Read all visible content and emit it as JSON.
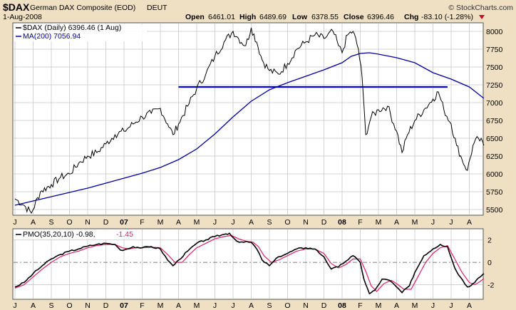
{
  "header": {
    "symbol": "$DAX",
    "name": "German DAX Composite (EOD)",
    "exchange": "DEUT",
    "date": "1-Aug-2008",
    "brand": "© StockCharts.com",
    "open_label": "Open",
    "open": "6461.01",
    "high_label": "High",
    "high": "6489.69",
    "low_label": "Low",
    "low": "6378.55",
    "close_label": "Close",
    "close": "6396.46",
    "chg_label": "Chg",
    "chg": "-83.10 (-1.28%)"
  },
  "colors": {
    "price": "#000000",
    "ma": "#0000a0",
    "support": "#0000e0",
    "pmo": "#000000",
    "signal": "#e0206a",
    "panel_bg": "#ffffff",
    "frame_bg": "#efe0c4",
    "grid": "#c8c8c8"
  },
  "chart_data": [
    {
      "type": "line",
      "legend": [
        {
          "label": "$DAX (Daily) 6396.46 (1 Aug)",
          "value_color": "#000000"
        },
        {
          "label": "MA(200) 7056.94",
          "value_color": "#0000a0"
        }
      ],
      "x_ticks": [
        "J",
        "A",
        "S",
        "O",
        "N",
        "D",
        "07",
        "F",
        "M",
        "A",
        "M",
        "J",
        "J",
        "A",
        "S",
        "O",
        "N",
        "D",
        "08",
        "F",
        "M",
        "A",
        "M",
        "J",
        "J",
        "A"
      ],
      "y_ticks": [
        5500,
        5750,
        6000,
        6250,
        6500,
        6750,
        7000,
        7250,
        7500,
        7750,
        8000
      ],
      "ylim": [
        5420,
        8120
      ],
      "series": [
        {
          "name": "$DAX (Daily)",
          "points": [
            [
              0,
              5650
            ],
            [
              0.5,
              5560
            ],
            [
              0.9,
              5450
            ],
            [
              1.4,
              5750
            ],
            [
              2,
              5850
            ],
            [
              2.5,
              5950
            ],
            [
              3,
              6000
            ],
            [
              3.5,
              6150
            ],
            [
              4,
              6250
            ],
            [
              4.5,
              6300
            ],
            [
              5,
              6420
            ],
            [
              5.5,
              6550
            ],
            [
              6,
              6600
            ],
            [
              6.5,
              6700
            ],
            [
              7,
              6800
            ],
            [
              7.5,
              6850
            ],
            [
              8,
              6920
            ],
            [
              8.4,
              6700
            ],
            [
              8.7,
              6550
            ],
            [
              9,
              6700
            ],
            [
              9.5,
              6950
            ],
            [
              10,
              7200
            ],
            [
              10.5,
              7400
            ],
            [
              11,
              7650
            ],
            [
              11.5,
              7850
            ],
            [
              12,
              8000
            ],
            [
              12.3,
              7900
            ],
            [
              12.7,
              7800
            ],
            [
              13,
              8050
            ],
            [
              13.3,
              7850
            ],
            [
              13.6,
              7600
            ],
            [
              14,
              7450
            ],
            [
              14.5,
              7400
            ],
            [
              15,
              7550
            ],
            [
              15.5,
              7750
            ],
            [
              16,
              7850
            ],
            [
              16.5,
              7950
            ],
            [
              17,
              7900
            ],
            [
              17.5,
              8000
            ],
            [
              17.8,
              7800
            ],
            [
              18,
              7700
            ],
            [
              18.3,
              7950
            ],
            [
              18.6,
              8000
            ],
            [
              18.9,
              7750
            ],
            [
              19.1,
              7350
            ],
            [
              19.3,
              6550
            ],
            [
              19.6,
              6800
            ],
            [
              20,
              6900
            ],
            [
              20.5,
              6950
            ],
            [
              21,
              6600
            ],
            [
              21.3,
              6300
            ],
            [
              21.6,
              6550
            ],
            [
              22,
              6750
            ],
            [
              22.5,
              6900
            ],
            [
              23,
              7050
            ],
            [
              23.3,
              7150
            ],
            [
              23.6,
              6900
            ],
            [
              24,
              6700
            ],
            [
              24.3,
              6400
            ],
            [
              24.6,
              6200
            ],
            [
              24.9,
              6050
            ],
            [
              25.2,
              6400
            ],
            [
              25.5,
              6500
            ],
            [
              25.8,
              6400
            ]
          ]
        },
        {
          "name": "MA(200)",
          "points": [
            [
              0,
              5560
            ],
            [
              1,
              5620
            ],
            [
              2,
              5680
            ],
            [
              3,
              5740
            ],
            [
              4,
              5800
            ],
            [
              5,
              5870
            ],
            [
              6,
              5940
            ],
            [
              7,
              6010
            ],
            [
              8,
              6090
            ],
            [
              9,
              6200
            ],
            [
              10,
              6350
            ],
            [
              11,
              6560
            ],
            [
              12,
              6800
            ],
            [
              13,
              7020
            ],
            [
              14,
              7180
            ],
            [
              15,
              7280
            ],
            [
              16,
              7370
            ],
            [
              17,
              7460
            ],
            [
              18,
              7560
            ],
            [
              18.5,
              7650
            ],
            [
              19,
              7690
            ],
            [
              19.5,
              7700
            ],
            [
              20,
              7680
            ],
            [
              21,
              7630
            ],
            [
              22,
              7560
            ],
            [
              23,
              7420
            ],
            [
              24,
              7330
            ],
            [
              25,
              7220
            ],
            [
              25.8,
              7060
            ]
          ]
        }
      ],
      "annotation": {
        "kind": "horizontal-line",
        "y": 7220,
        "x_from": 9.0,
        "x_to": 23.8
      }
    },
    {
      "type": "line",
      "legend": [
        {
          "label": "PMO(35,20,10) -0.98,",
          "value_color": "#000000"
        },
        {
          "label": "-1.45",
          "value_color": "#e0206a"
        }
      ],
      "y_ticks": [
        -2,
        0,
        2
      ],
      "ylim": [
        -3.3,
        3.0
      ],
      "series": [
        {
          "name": "PMO",
          "points": [
            [
              0,
              -2.2
            ],
            [
              0.5,
              -1.8
            ],
            [
              1,
              -1
            ],
            [
              1.5,
              -0.3
            ],
            [
              2,
              0.3
            ],
            [
              2.5,
              0.7
            ],
            [
              3,
              1
            ],
            [
              3.5,
              1.2
            ],
            [
              4,
              1.45
            ],
            [
              4.5,
              1.6
            ],
            [
              5,
              1.7
            ],
            [
              5.5,
              1.6
            ],
            [
              5.8,
              1.1
            ],
            [
              6.2,
              1.2
            ],
            [
              6.5,
              1.4
            ],
            [
              7,
              1.3
            ],
            [
              7.5,
              1.4
            ],
            [
              8,
              1.2
            ],
            [
              8.4,
              0.2
            ],
            [
              8.7,
              -0.3
            ],
            [
              9,
              0.2
            ],
            [
              9.5,
              1
            ],
            [
              10,
              1.7
            ],
            [
              10.5,
              2.0
            ],
            [
              11,
              2.3
            ],
            [
              11.5,
              2.5
            ],
            [
              11.8,
              2.6
            ],
            [
              12.2,
              1.9
            ],
            [
              12.6,
              1.8
            ],
            [
              13,
              1.8
            ],
            [
              13.3,
              1.2
            ],
            [
              13.6,
              0.2
            ],
            [
              14,
              -0.3
            ],
            [
              14.5,
              0.5
            ],
            [
              15,
              0.8
            ],
            [
              15.5,
              1.2
            ],
            [
              16,
              1.3
            ],
            [
              16.5,
              1.2
            ],
            [
              17,
              0.5
            ],
            [
              17.4,
              -0.6
            ],
            [
              17.8,
              -0.4
            ],
            [
              18.2,
              0.1
            ],
            [
              18.6,
              0.6
            ],
            [
              19,
              0
            ],
            [
              19.2,
              -1.5
            ],
            [
              19.5,
              -2.8
            ],
            [
              19.8,
              -2.5
            ],
            [
              20.2,
              -1.5
            ],
            [
              20.6,
              -1.6
            ],
            [
              21,
              -2.2
            ],
            [
              21.3,
              -2.7
            ],
            [
              21.7,
              -2.1
            ],
            [
              22,
              -0.9
            ],
            [
              22.5,
              0.6
            ],
            [
              23,
              1.2
            ],
            [
              23.4,
              1.6
            ],
            [
              23.8,
              1.4
            ],
            [
              24.2,
              -0.5
            ],
            [
              24.5,
              -1.3
            ],
            [
              24.9,
              -2.2
            ],
            [
              25.2,
              -1.9
            ],
            [
              25.5,
              -1.4
            ],
            [
              25.8,
              -1.0
            ]
          ]
        },
        {
          "name": "Signal",
          "points": [
            [
              0,
              -2.3
            ],
            [
              0.5,
              -2
            ],
            [
              1,
              -1.3
            ],
            [
              1.5,
              -0.6
            ],
            [
              2,
              0
            ],
            [
              2.5,
              0.5
            ],
            [
              3,
              0.8
            ],
            [
              3.5,
              1
            ],
            [
              4,
              1.3
            ],
            [
              4.5,
              1.5
            ],
            [
              5,
              1.6
            ],
            [
              5.5,
              1.6
            ],
            [
              5.9,
              1.3
            ],
            [
              6.3,
              1.2
            ],
            [
              6.6,
              1.3
            ],
            [
              7,
              1.3
            ],
            [
              7.5,
              1.35
            ],
            [
              8,
              1.3
            ],
            [
              8.4,
              0.7
            ],
            [
              8.8,
              0
            ],
            [
              9.2,
              0
            ],
            [
              9.6,
              0.7
            ],
            [
              10,
              1.3
            ],
            [
              10.5,
              1.7
            ],
            [
              11,
              2.1
            ],
            [
              11.5,
              2.3
            ],
            [
              11.9,
              2.4
            ],
            [
              12.3,
              2.1
            ],
            [
              12.7,
              1.9
            ],
            [
              13.1,
              1.8
            ],
            [
              13.4,
              1.4
            ],
            [
              13.7,
              0.6
            ],
            [
              14.1,
              0
            ],
            [
              14.5,
              0.2
            ],
            [
              15,
              0.6
            ],
            [
              15.5,
              1
            ],
            [
              16,
              1.2
            ],
            [
              16.5,
              1.2
            ],
            [
              17,
              0.8
            ],
            [
              17.4,
              -0.1
            ],
            [
              17.8,
              -0.5
            ],
            [
              18.2,
              -0.2
            ],
            [
              18.6,
              0.3
            ],
            [
              19,
              0.3
            ],
            [
              19.3,
              -0.8
            ],
            [
              19.6,
              -2.1
            ],
            [
              19.9,
              -2.6
            ],
            [
              20.3,
              -1.9
            ],
            [
              20.7,
              -1.6
            ],
            [
              21,
              -1.9
            ],
            [
              21.4,
              -2.4
            ],
            [
              21.8,
              -2.4
            ],
            [
              22.1,
              -1.5
            ],
            [
              22.6,
              0
            ],
            [
              23,
              0.8
            ],
            [
              23.4,
              1.3
            ],
            [
              23.8,
              1.5
            ],
            [
              24.2,
              0.3
            ],
            [
              24.6,
              -0.9
            ],
            [
              25,
              -1.8
            ],
            [
              25.3,
              -2.0
            ],
            [
              25.6,
              -1.7
            ],
            [
              25.8,
              -1.45
            ]
          ]
        }
      ]
    }
  ]
}
